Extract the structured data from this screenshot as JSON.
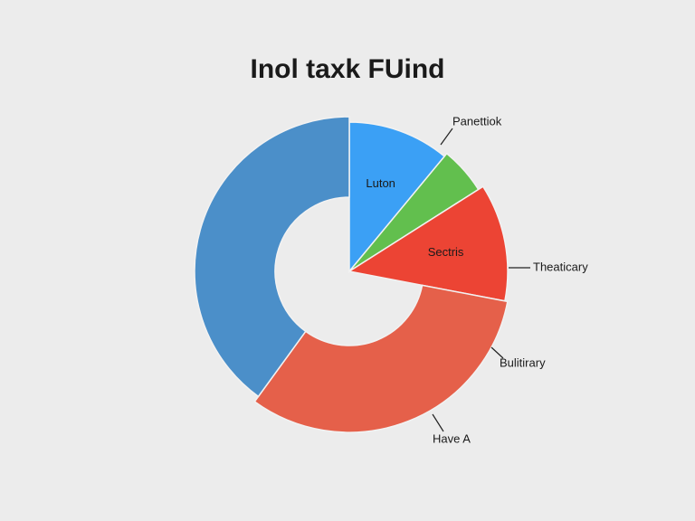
{
  "chart_data": {
    "type": "pie",
    "title": "Inol taxk FUind",
    "categories": [
      "Luton",
      null,
      "Sectris",
      null,
      null
    ],
    "values": [
      11,
      5,
      12,
      32,
      40
    ],
    "colors": [
      "#3ba0f5",
      "#62bf4e",
      "#ec4434",
      "#e5604a",
      "#4b8fc9"
    ],
    "annotations": [
      "Panettiok",
      "Theaticary",
      "Bulitirary",
      "Have A"
    ]
  }
}
